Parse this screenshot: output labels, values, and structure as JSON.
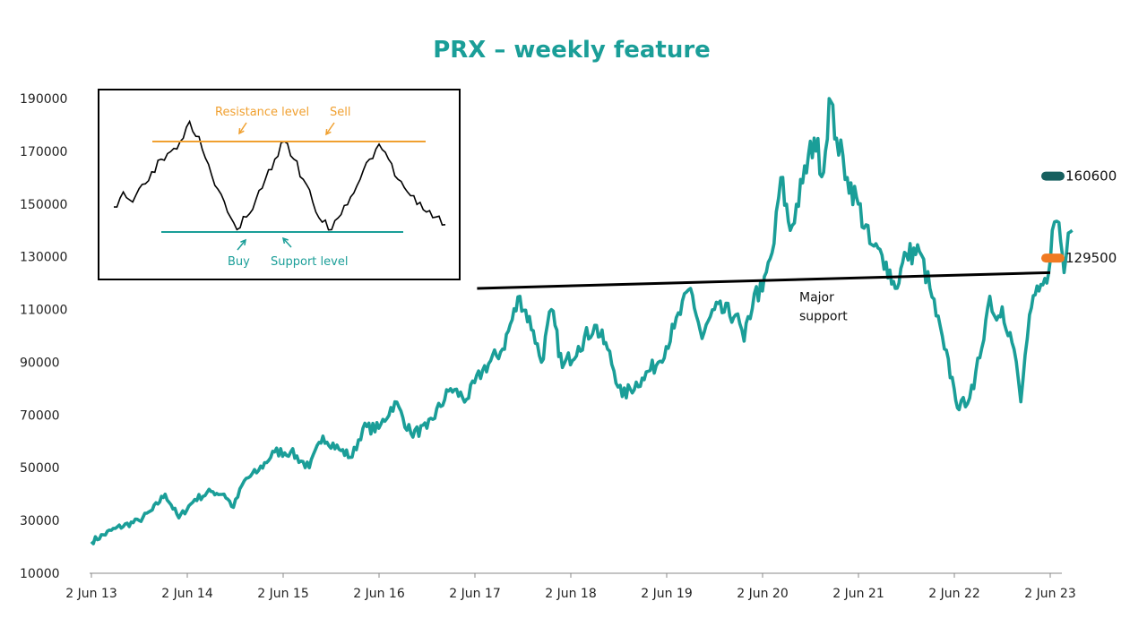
{
  "chart_data": {
    "type": "line",
    "title": "PRX – weekly feature",
    "xlabel": "",
    "ylabel": "",
    "ylim": [
      10000,
      190000
    ],
    "y_ticks": [
      "190000",
      "170000",
      "150000",
      "130000",
      "110000",
      "90000",
      "70000",
      "50000",
      "30000",
      "10000"
    ],
    "x_ticks": [
      "2 Jun 13",
      "2 Jun 14",
      "2 Jun 15",
      "2 Jun 16",
      "2 Jun 17",
      "2 Jun 18",
      "2 Jun 19",
      "2 Jun 20",
      "2 Jun 21",
      "2 Jun 22",
      "2 Jun 23"
    ],
    "grid": false,
    "series": [
      {
        "color": "#1a9e98",
        "points": [
          [
            "2013-06-02",
            22000
          ],
          [
            "2013-09-01",
            27000
          ],
          [
            "2013-12-01",
            30000
          ],
          [
            "2014-01-20",
            34000
          ],
          [
            "2014-03-10",
            40000
          ],
          [
            "2014-05-01",
            31000
          ],
          [
            "2014-07-01",
            38000
          ],
          [
            "2014-09-01",
            41000
          ],
          [
            "2014-10-20",
            40000
          ],
          [
            "2014-11-25",
            35000
          ],
          [
            "2015-01-05",
            45000
          ],
          [
            "2015-03-01",
            49000
          ],
          [
            "2015-05-01",
            56000
          ],
          [
            "2015-07-01",
            56000
          ],
          [
            "2015-09-10",
            50000
          ],
          [
            "2015-11-01",
            62000
          ],
          [
            "2016-01-01",
            57000
          ],
          [
            "2016-02-20",
            54000
          ],
          [
            "2016-04-01",
            65000
          ],
          [
            "2016-06-01",
            65000
          ],
          [
            "2016-08-01",
            75000
          ],
          [
            "2016-10-01",
            63000
          ],
          [
            "2016-12-01",
            65000
          ],
          [
            "2017-03-01",
            80000
          ],
          [
            "2017-05-01",
            76000
          ],
          [
            "2017-07-01",
            87000
          ],
          [
            "2017-09-15",
            95000
          ],
          [
            "2017-11-20",
            115000
          ],
          [
            "2018-01-10",
            102000
          ],
          [
            "2018-02-10",
            90000
          ],
          [
            "2018-03-20",
            110000
          ],
          [
            "2018-05-01",
            88000
          ],
          [
            "2018-07-01",
            96000
          ],
          [
            "2018-09-01",
            104000
          ],
          [
            "2018-10-20",
            95000
          ],
          [
            "2018-12-15",
            77000
          ],
          [
            "2019-03-01",
            84000
          ],
          [
            "2019-05-01",
            90000
          ],
          [
            "2019-07-01",
            103000
          ],
          [
            "2019-09-01",
            118000
          ],
          [
            "2019-10-15",
            99000
          ],
          [
            "2019-12-01",
            110000
          ],
          [
            "2020-02-20",
            108000
          ],
          [
            "2020-03-23",
            98000
          ],
          [
            "2020-05-01",
            116000
          ],
          [
            "2020-06-01",
            117000
          ],
          [
            "2020-07-15",
            135000
          ],
          [
            "2020-08-10",
            160000
          ],
          [
            "2020-09-15",
            140000
          ],
          [
            "2020-11-01",
            158000
          ],
          [
            "2020-12-15",
            175000
          ],
          [
            "2021-01-20",
            162000
          ],
          [
            "2021-02-10",
            190000
          ],
          [
            "2021-03-10",
            175000
          ],
          [
            "2021-04-20",
            160000
          ],
          [
            "2021-06-01",
            150000
          ],
          [
            "2021-07-15",
            135000
          ],
          [
            "2021-09-15",
            128000
          ],
          [
            "2021-10-20",
            118000
          ],
          [
            "2021-12-01",
            131000
          ],
          [
            "2022-01-20",
            132000
          ],
          [
            "2022-03-01",
            118000
          ],
          [
            "2022-04-25",
            95000
          ],
          [
            "2022-06-01",
            80000
          ],
          [
            "2022-06-20",
            72000
          ],
          [
            "2022-08-15",
            80000
          ],
          [
            "2022-10-15",
            115000
          ],
          [
            "2022-11-10",
            106000
          ],
          [
            "2022-12-01",
            111000
          ],
          [
            "2023-01-15",
            95000
          ],
          [
            "2023-02-10",
            75000
          ],
          [
            "2023-03-15",
            108000
          ],
          [
            "2023-04-20",
            117000
          ],
          [
            "2023-05-20",
            120000
          ],
          [
            "2023-06-10",
            140000
          ],
          [
            "2023-07-05",
            143000
          ],
          [
            "2023-07-25",
            124000
          ],
          [
            "2023-08-10",
            139000
          ],
          [
            "2023-08-25",
            140000
          ]
        ]
      },
      {
        "color": "#000000",
        "points": [
          [
            "2017-06-10",
            118000
          ],
          [
            "2023-06-02",
            124000
          ]
        ]
      }
    ],
    "annotations": [
      {
        "text_lines": [
          "Major",
          "support"
        ],
        "x": "2020-06-15",
        "y": 113000
      }
    ],
    "value_tags": [
      {
        "value": "160600",
        "color": "#17605f",
        "y": 160600
      },
      {
        "value": "129500",
        "color": "#f07a22",
        "y": 129500
      }
    ],
    "inset": {
      "resistance_label": "Resistance level",
      "sell_label": "Sell",
      "buy_label": "Buy",
      "support_label": "Support level",
      "resistance_color": "#f0a030",
      "support_color": "#1a9e98",
      "points": [
        [
          0,
          149
        ],
        [
          1,
          155
        ],
        [
          2,
          151
        ],
        [
          3,
          158
        ],
        [
          4,
          163
        ],
        [
          5,
          168
        ],
        [
          6,
          171
        ],
        [
          7,
          175
        ],
        [
          8,
          183
        ],
        [
          9,
          177
        ],
        [
          10,
          166
        ],
        [
          11,
          156
        ],
        [
          12,
          147
        ],
        [
          13,
          140
        ],
        [
          14,
          145
        ],
        [
          15,
          152
        ],
        [
          16,
          160
        ],
        [
          17,
          168
        ],
        [
          18,
          175
        ],
        [
          19,
          168
        ],
        [
          20,
          160
        ],
        [
          21,
          151
        ],
        [
          22,
          143
        ],
        [
          23,
          140
        ],
        [
          24,
          146
        ],
        [
          25,
          153
        ],
        [
          26,
          160
        ],
        [
          27,
          168
        ],
        [
          28,
          174
        ],
        [
          29,
          168
        ],
        [
          30,
          160
        ],
        [
          31,
          155
        ],
        [
          32,
          150
        ],
        [
          33,
          147
        ],
        [
          34,
          145
        ],
        [
          35,
          142
        ]
      ]
    }
  }
}
